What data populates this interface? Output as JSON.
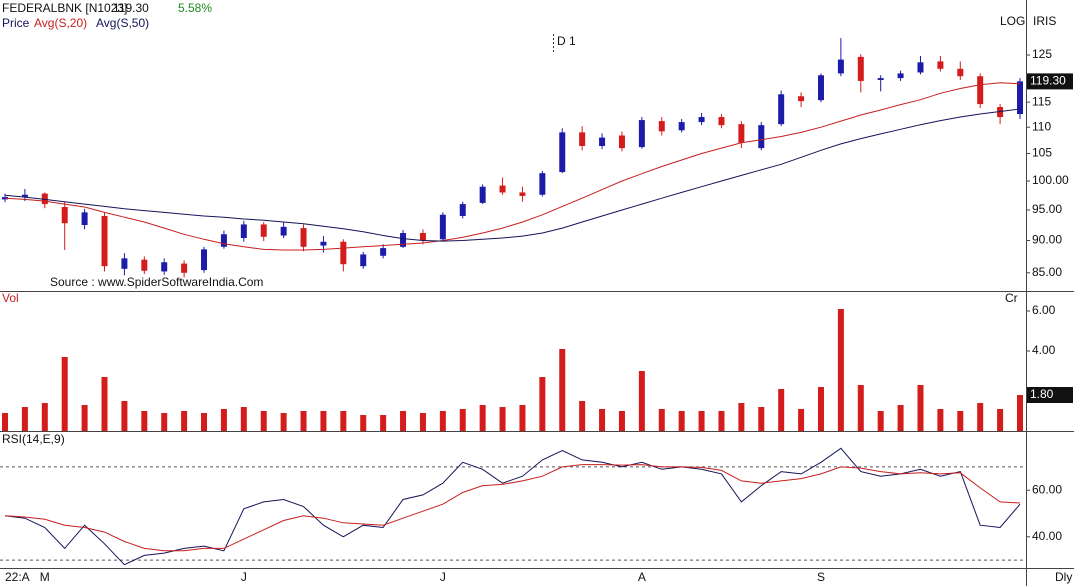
{
  "header": {
    "symbol": "FEDERALBNK [N1023]",
    "price": "119.30",
    "change": "5.58%",
    "log": "LOG",
    "iris": "IRIS",
    "annotation": "D 1",
    "source": "Source : www.SpiderSoftwareIndia.Com",
    "period": "Dly"
  },
  "chart_data": [
    {
      "type": "candlestick",
      "legend_label": "Price",
      "log_scale": true,
      "up_color": "#1c1ca8",
      "down_color": "#d41c1c",
      "open": [
        96.8,
        97.2,
        97.8,
        95.5,
        92.5,
        94.0,
        85.6,
        87.0,
        85.2,
        86.4,
        85.4,
        89.0,
        90.4,
        92.6,
        90.8,
        92.0,
        89.2,
        89.8,
        86.0,
        87.6,
        89.0,
        91.2,
        90.2,
        94.0,
        96.2,
        99.2,
        98.0,
        97.6,
        101.6,
        109.0,
        106.4,
        108.4,
        106.2,
        111.2,
        109.4,
        111.0,
        112.0,
        110.6,
        106.0,
        110.6,
        116.2,
        115.4,
        121.0,
        124.6,
        119.6,
        120.0,
        121.2,
        123.6,
        122.0,
        120.4,
        114.0,
        112.6
      ],
      "high": [
        97.8,
        98.6,
        98.0,
        96.4,
        95.2,
        94.5,
        88.0,
        87.5,
        87.2,
        86.9,
        89.0,
        91.6,
        93.2,
        93.0,
        93.0,
        92.6,
        90.7,
        90.2,
        88.2,
        89.4,
        91.7,
        91.8,
        94.6,
        96.4,
        99.4,
        100.6,
        99.0,
        101.8,
        109.8,
        110.2,
        108.8,
        109.2,
        112.0,
        112.0,
        111.6,
        112.8,
        112.6,
        111.2,
        111.0,
        117.4,
        117.0,
        121.0,
        128.8,
        125.2,
        120.6,
        121.6,
        124.8,
        124.8,
        123.6,
        121.0,
        114.6,
        120.0
      ],
      "low": [
        96.3,
        96.5,
        95.3,
        88.5,
        91.8,
        85.2,
        84.6,
        84.8,
        84.7,
        84.3,
        85.0,
        88.7,
        89.8,
        89.9,
        90.4,
        88.3,
        88.1,
        85.2,
        85.6,
        87.2,
        88.8,
        89.4,
        90.0,
        93.6,
        96.0,
        97.6,
        96.4,
        97.3,
        101.4,
        105.6,
        105.8,
        105.4,
        105.9,
        108.4,
        109.0,
        110.4,
        109.8,
        106.0,
        105.6,
        110.2,
        114.0,
        115.0,
        120.4,
        117.0,
        117.2,
        119.4,
        120.8,
        121.4,
        119.6,
        113.8,
        110.6,
        111.6
      ],
      "close": [
        97.2,
        97.6,
        96.0,
        92.8,
        94.6,
        86.0,
        87.2,
        85.3,
        86.6,
        85.0,
        88.6,
        91.0,
        92.6,
        90.6,
        92.2,
        89.0,
        89.8,
        86.3,
        87.8,
        88.8,
        91.2,
        90.0,
        94.2,
        96.0,
        99.0,
        98.0,
        97.4,
        101.4,
        109.0,
        106.4,
        108.0,
        106.0,
        111.4,
        109.2,
        111.0,
        112.0,
        110.4,
        107.0,
        110.4,
        116.6,
        115.2,
        120.6,
        124.0,
        119.4,
        120.0,
        121.0,
        123.4,
        122.0,
        120.4,
        114.6,
        112.0,
        119.3
      ],
      "series": [
        {
          "name": "Avg(S,20)",
          "color": "#c81e1e",
          "values": [
            97,
            96.8,
            96.5,
            96,
            95.5,
            94.6,
            93.8,
            93,
            92,
            91,
            90.2,
            89.5,
            89,
            88.6,
            88.5,
            88.5,
            88.6,
            88.8,
            89,
            89.2,
            89.4,
            89.6,
            90,
            90.5,
            91.2,
            92,
            93,
            94.2,
            95.6,
            97,
            98.5,
            100,
            101.3,
            102.6,
            103.8,
            105,
            106,
            107,
            107.6,
            108.2,
            109,
            110,
            111.2,
            112.4,
            113.4,
            114.5,
            115.5,
            116.8,
            117.8,
            118.6,
            119,
            118.8
          ]
        },
        {
          "name": "Avg(S,50)",
          "color": "#14145a",
          "values": [
            97.5,
            97.2,
            96.8,
            96.4,
            96,
            95.6,
            95.2,
            94.9,
            94.6,
            94.3,
            94,
            93.8,
            93.5,
            93.3,
            93,
            92.7,
            92.3,
            91.9,
            91.4,
            90.8,
            90.3,
            90,
            89.9,
            90,
            90.2,
            90.4,
            90.7,
            91.2,
            92,
            93,
            94,
            95,
            96,
            97,
            98,
            99,
            100,
            101,
            102,
            103,
            104.3,
            105.6,
            106.8,
            107.8,
            108.7,
            109.6,
            110.5,
            111.3,
            112,
            112.6,
            113.1,
            113.6
          ]
        }
      ],
      "ylim": [
        82.3,
        137.8
      ],
      "yticks": [
        {
          "value": 85,
          "label": "85.00"
        },
        {
          "value": 90,
          "label": "90.00"
        },
        {
          "value": 95,
          "label": "95.00"
        },
        {
          "value": 100,
          "label": "100.00"
        },
        105,
        110,
        115,
        125
      ],
      "last_value": {
        "value": 119.3,
        "label": "119.30"
      }
    },
    {
      "type": "bar",
      "title": "Vol",
      "unit": "Cr",
      "color": "#d41c1c",
      "values": [
        0.9,
        1.2,
        1.4,
        3.7,
        1.3,
        2.7,
        1.5,
        1.0,
        0.9,
        1.0,
        0.9,
        1.1,
        1.2,
        1.0,
        0.9,
        1.0,
        1.0,
        1.0,
        0.8,
        0.8,
        1.0,
        0.9,
        1.0,
        1.1,
        1.3,
        1.2,
        1.3,
        2.7,
        4.1,
        1.5,
        1.1,
        1.0,
        3.0,
        1.1,
        1.0,
        1.0,
        1.0,
        1.4,
        1.2,
        2.1,
        1.1,
        2.2,
        6.1,
        2.3,
        1.0,
        1.3,
        2.3,
        1.1,
        1.0,
        1.4,
        1.1,
        1.8
      ],
      "ylim": [
        0,
        6.9
      ],
      "yticks": [
        {
          "value": 4,
          "label": "4.00"
        },
        {
          "value": 6,
          "label": "6.00"
        }
      ],
      "last_value": {
        "value": 1.8,
        "label": "1.80"
      }
    },
    {
      "type": "line",
      "title": "RSI(14,E,9)",
      "categories": [
        "22:A",
        null,
        "M",
        null,
        null,
        null,
        null,
        null,
        null,
        null,
        null,
        null,
        "J",
        null,
        null,
        null,
        null,
        null,
        null,
        null,
        null,
        null,
        "J",
        null,
        null,
        null,
        null,
        null,
        null,
        null,
        null,
        null,
        "A",
        null,
        null,
        null,
        null,
        null,
        null,
        null,
        null,
        "S",
        null,
        null,
        null,
        null,
        null,
        null,
        null,
        null,
        null,
        null
      ],
      "series": [
        {
          "color": "#14145a",
          "values": [
            49,
            48,
            44,
            35,
            45,
            37,
            28,
            32,
            33,
            35,
            36,
            34,
            52,
            55,
            56,
            53,
            45,
            40,
            45,
            44,
            56,
            58,
            63,
            72,
            69,
            63,
            66,
            73,
            77,
            73,
            72,
            70,
            72,
            69,
            70,
            69,
            67,
            55,
            62,
            68,
            67,
            72,
            78,
            68,
            66,
            67,
            69,
            66,
            68,
            45,
            44,
            54
          ]
        },
        {
          "color": "#c81e1e",
          "values": [
            49,
            48.5,
            47.5,
            45,
            44,
            42,
            38,
            35,
            34,
            34,
            35,
            35,
            39,
            43,
            47,
            49,
            48,
            46,
            45.5,
            45,
            48,
            51,
            54,
            59,
            62,
            62.5,
            64,
            66,
            70,
            71,
            71,
            70.8,
            71,
            70,
            70,
            69.8,
            68.5,
            64,
            63,
            64,
            65,
            67,
            70,
            69.5,
            68,
            67,
            67.5,
            67,
            67.5,
            61,
            55,
            54.5
          ]
        }
      ],
      "ylim": [
        26.6,
        85
      ],
      "yticks": [
        {
          "value": 40,
          "label": "40.00"
        },
        {
          "value": 60,
          "label": "60.00"
        }
      ],
      "levels": [
        30,
        70
      ]
    }
  ]
}
